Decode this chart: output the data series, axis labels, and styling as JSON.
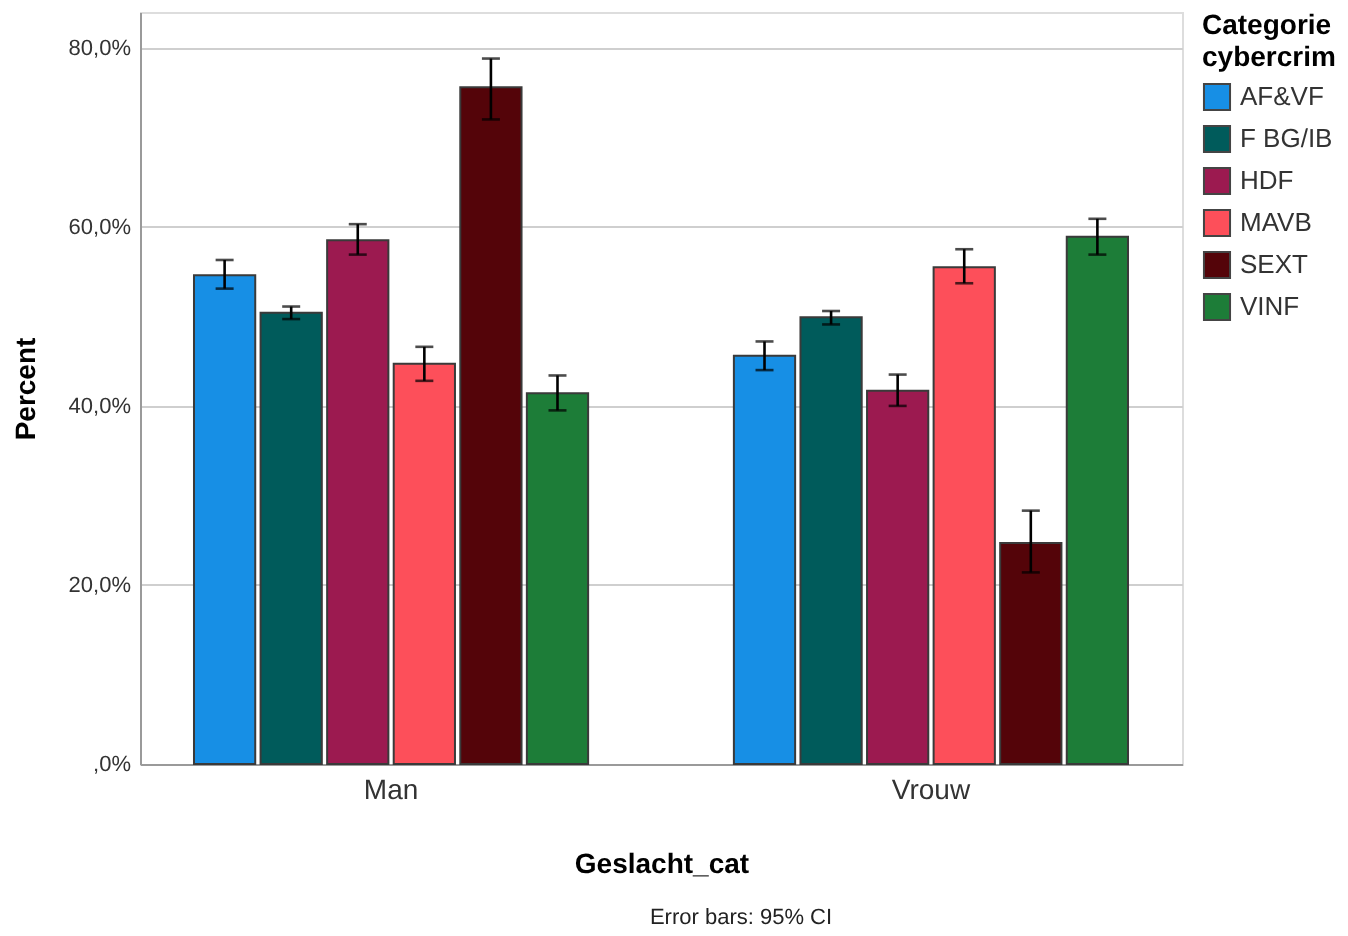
{
  "chart_data": {
    "type": "bar",
    "xlabel": "Geslacht_cat",
    "ylabel": "Percent",
    "legend_title": "Categorie cybercrim",
    "categories": [
      "Man",
      "Vrouw"
    ],
    "series": [
      {
        "name": "AF&VF",
        "color": "#178fe5",
        "values": [
          54.6,
          45.6
        ],
        "errors": [
          [
            53.1,
            56.3
          ],
          [
            44.0,
            47.2
          ]
        ]
      },
      {
        "name": "F BG/IB",
        "color": "#005b5b",
        "values": [
          50.4,
          49.9
        ],
        "errors": [
          [
            49.7,
            51.1
          ],
          [
            49.1,
            50.6
          ]
        ]
      },
      {
        "name": "HDF",
        "color": "#9c1a50",
        "values": [
          58.5,
          41.7
        ],
        "errors": [
          [
            56.9,
            60.3
          ],
          [
            40.0,
            43.5
          ]
        ]
      },
      {
        "name": "MAVB",
        "color": "#fd4f5a",
        "values": [
          44.7,
          55.5
        ],
        "errors": [
          [
            42.8,
            46.6
          ],
          [
            53.7,
            57.5
          ]
        ]
      },
      {
        "name": "SEXT",
        "color": "#540409",
        "values": [
          75.6,
          24.7
        ],
        "errors": [
          [
            72.0,
            78.8
          ],
          [
            21.4,
            28.3
          ]
        ]
      },
      {
        "name": "VINF",
        "color": "#1d7d38",
        "values": [
          41.4,
          58.9
        ],
        "errors": [
          [
            39.5,
            43.4
          ],
          [
            56.9,
            60.9
          ]
        ]
      }
    ],
    "ylim": [
      0,
      84
    ],
    "yticks": [
      {
        "value": 0,
        "label": ",0%"
      },
      {
        "value": 20,
        "label": "20,0%"
      },
      {
        "value": 40,
        "label": "40,0%"
      },
      {
        "value": 60,
        "label": "60,0%"
      },
      {
        "value": 80,
        "label": "80,0%"
      }
    ],
    "grid": "y",
    "legend": "right",
    "annotations": [
      "Error bars: 95% CI"
    ]
  }
}
